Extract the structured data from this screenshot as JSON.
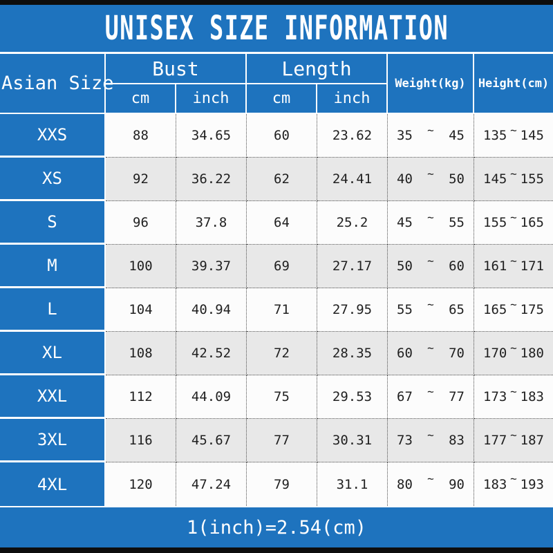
{
  "title": "UNISEX SIZE INFORMATION",
  "conversion_note": "1(inch)=2.54(cm)",
  "range_separator": "~",
  "header": {
    "corner": "Asian Size",
    "bust": "Bust",
    "length": "Length",
    "bust_cm": "cm",
    "bust_inch": "inch",
    "length_cm": "cm",
    "length_inch": "inch",
    "weight": "Weight(kg)",
    "height": "Height(cm)"
  },
  "sizes": [
    {
      "size": "XXS",
      "bust_cm": "88",
      "bust_inch": "34.65",
      "length_cm": "60",
      "length_inch": "23.62",
      "weight_min": "35",
      "weight_max": "45",
      "height_min": "135",
      "height_max": "145"
    },
    {
      "size": "XS",
      "bust_cm": "92",
      "bust_inch": "36.22",
      "length_cm": "62",
      "length_inch": "24.41",
      "weight_min": "40",
      "weight_max": "50",
      "height_min": "145",
      "height_max": "155"
    },
    {
      "size": "S",
      "bust_cm": "96",
      "bust_inch": "37.8",
      "length_cm": "64",
      "length_inch": "25.2",
      "weight_min": "45",
      "weight_max": "55",
      "height_min": "155",
      "height_max": "165"
    },
    {
      "size": "M",
      "bust_cm": "100",
      "bust_inch": "39.37",
      "length_cm": "69",
      "length_inch": "27.17",
      "weight_min": "50",
      "weight_max": "60",
      "height_min": "161",
      "height_max": "171"
    },
    {
      "size": "L",
      "bust_cm": "104",
      "bust_inch": "40.94",
      "length_cm": "71",
      "length_inch": "27.95",
      "weight_min": "55",
      "weight_max": "65",
      "height_min": "165",
      "height_max": "175"
    },
    {
      "size": "XL",
      "bust_cm": "108",
      "bust_inch": "42.52",
      "length_cm": "72",
      "length_inch": "28.35",
      "weight_min": "60",
      "weight_max": "70",
      "height_min": "170",
      "height_max": "180"
    },
    {
      "size": "XXL",
      "bust_cm": "112",
      "bust_inch": "44.09",
      "length_cm": "75",
      "length_inch": "29.53",
      "weight_min": "67",
      "weight_max": "77",
      "height_min": "173",
      "height_max": "183"
    },
    {
      "size": "3XL",
      "bust_cm": "116",
      "bust_inch": "45.67",
      "length_cm": "77",
      "length_inch": "30.31",
      "weight_min": "73",
      "weight_max": "83",
      "height_min": "177",
      "height_max": "187"
    },
    {
      "size": "4XL",
      "bust_cm": "120",
      "bust_inch": "47.24",
      "length_cm": "79",
      "length_inch": "31.1",
      "weight_min": "80",
      "weight_max": "90",
      "height_min": "183",
      "height_max": "193"
    }
  ],
  "colors": {
    "blue": "#1e73be",
    "row-white": "#fcfcfc",
    "row-gray": "#e8e8e8",
    "bar": "#0d0d0d",
    "ink": "#1f1f1f",
    "dot": "#4a4a4a"
  },
  "chart_data": {
    "type": "table",
    "title": "UNISEX SIZE INFORMATION",
    "columns": [
      "Asian Size",
      "Bust cm",
      "Bust inch",
      "Length cm",
      "Length inch",
      "Weight(kg)",
      "Height(cm)"
    ],
    "rows": [
      [
        "XXS",
        88,
        34.65,
        60,
        23.62,
        "35~45",
        "135~145"
      ],
      [
        "XS",
        92,
        36.22,
        62,
        24.41,
        "40~50",
        "145~155"
      ],
      [
        "S",
        96,
        37.8,
        64,
        25.2,
        "45~55",
        "155~165"
      ],
      [
        "M",
        100,
        39.37,
        69,
        27.17,
        "50~60",
        "161~171"
      ],
      [
        "L",
        104,
        40.94,
        71,
        27.95,
        "55~65",
        "165~175"
      ],
      [
        "XL",
        108,
        42.52,
        72,
        28.35,
        "60~70",
        "170~180"
      ],
      [
        "XXL",
        112,
        44.09,
        75,
        29.53,
        "67~77",
        "173~183"
      ],
      [
        "3XL",
        116,
        45.67,
        77,
        30.31,
        "73~83",
        "177~187"
      ],
      [
        "4XL",
        120,
        47.24,
        79,
        31.1,
        "80~90",
        "183~193"
      ]
    ],
    "note": "1(inch)=2.54(cm)",
    "layout": "blue header band top, two-level column headers, alternating white/gray rows, blue footer band"
  }
}
